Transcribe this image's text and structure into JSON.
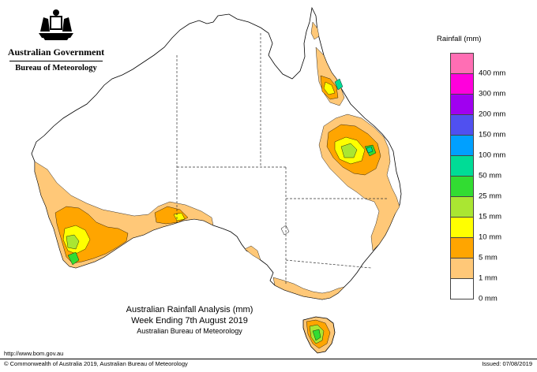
{
  "header": {
    "org_line1": "Australian Government",
    "org_line2": "Bureau of Meteorology"
  },
  "legend": {
    "title": "Rainfall (mm)",
    "bins": [
      {
        "label": "",
        "color": "#ff6eb4"
      },
      {
        "label": "400 mm",
        "color": "#ff00dc"
      },
      {
        "label": "300 mm",
        "color": "#a000f0"
      },
      {
        "label": "200 mm",
        "color": "#5050f0"
      },
      {
        "label": "150 mm",
        "color": "#00a0ff"
      },
      {
        "label": "100 mm",
        "color": "#00dc96"
      },
      {
        "label": "50 mm",
        "color": "#32dc32"
      },
      {
        "label": "25 mm",
        "color": "#aae632"
      },
      {
        "label": "15 mm",
        "color": "#ffff00"
      },
      {
        "label": "10 mm",
        "color": "#ffa500"
      },
      {
        "label": "5 mm",
        "color": "#ffc878"
      },
      {
        "label": "1 mm",
        "color": "#ffffff"
      },
      {
        "label": "0 mm",
        "color": ""
      }
    ]
  },
  "caption": {
    "line1": "Australian Rainfall Analysis (mm)",
    "line2": "Week Ending 7th August 2019",
    "line3": "Australian Bureau of Meteorology"
  },
  "footer": {
    "url": "http://www.bom.gov.au",
    "copyright": "© Commonwealth of Australia 2019, Australian Bureau of Meteorology",
    "issued": "Issued: 07/08/2019"
  }
}
